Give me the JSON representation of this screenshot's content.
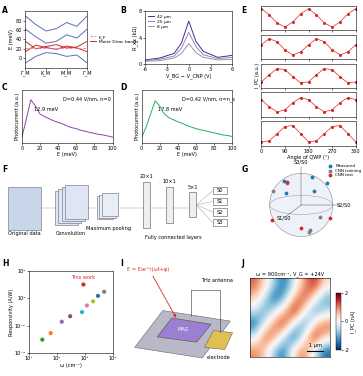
{
  "chart_data": [
    {
      "panel": "A",
      "type": "line",
      "ylabel": "E (meV)",
      "x": [
        0,
        0.5,
        1,
        1.5,
        2,
        2.5,
        3
      ],
      "xlim": [
        0,
        3
      ],
      "xticks": [
        {
          "value": 0,
          "label": "Γ_M"
        },
        {
          "value": 1,
          "label": "K_M"
        },
        {
          "value": 2,
          "label": "M_M"
        },
        {
          "value": 3,
          "label": "Γ_M"
        }
      ],
      "ylim": [
        -20,
        100
      ],
      "yticks": [
        0,
        20,
        40,
        60,
        80
      ],
      "series": [
        {
          "color": "#5b6fb5",
          "values": [
            90,
            72,
            58,
            63,
            76,
            68,
            90
          ]
        },
        {
          "color": "#5b6fb5",
          "values": [
            62,
            46,
            32,
            36,
            50,
            43,
            62
          ]
        },
        {
          "color": "#5b6fb5",
          "values": [
            -10,
            4,
            12,
            10,
            4,
            7,
            -10
          ]
        },
        {
          "name": "Moiré Dirac bands",
          "color": "#d62728",
          "values": [
            36,
            20,
            25,
            29,
            22,
            24,
            36
          ]
        },
        {
          "color": "#d62728",
          "values": [
            14,
            28,
            23,
            19,
            26,
            22,
            14
          ]
        }
      ],
      "ef": {
        "name": "E_F",
        "value": 22,
        "color": "#e377c2",
        "line_style": "dashed"
      },
      "legend": "right"
    },
    {
      "panel": "B",
      "type": "line",
      "xlabel": "V_BG − V_CNP (V)",
      "ylabel": "R_xx (kΩ)",
      "x": [
        -6,
        -4,
        -2,
        -1,
        0,
        1,
        2,
        4,
        6
      ],
      "xlim": [
        -6,
        6
      ],
      "xticks": [
        -6,
        -3,
        0,
        3,
        6
      ],
      "ylim": [
        0,
        8
      ],
      "yticks": [
        0,
        4,
        8
      ],
      "series": [
        {
          "name": "42 µm",
          "color": "#4b2c8a",
          "values": [
            0.6,
            0.9,
            1.6,
            3.2,
            6.5,
            3.4,
            1.9,
            1.0,
            1.3
          ]
        },
        {
          "name": "25 µm",
          "color": "#9b7fd1",
          "values": [
            0.5,
            0.7,
            1.2,
            2.4,
            4.8,
            2.6,
            1.4,
            0.8,
            1.0
          ]
        },
        {
          "name": "8 µm",
          "color": "#999999",
          "values": [
            0.4,
            0.5,
            0.9,
            1.6,
            3.1,
            1.7,
            1.0,
            0.6,
            0.7
          ]
        }
      ],
      "legend": "upper left"
    },
    {
      "panel": "C",
      "type": "line",
      "xlabel": "E (meV)",
      "ylabel": "Photocurrent (a.u.)",
      "x": [
        0,
        5,
        10,
        15,
        20,
        25,
        30,
        35,
        40,
        45,
        50,
        55,
        60,
        65,
        70,
        75,
        80,
        85,
        90,
        95,
        100
      ],
      "xlim": [
        0,
        100
      ],
      "xticks": [
        0,
        20,
        40,
        60,
        80,
        100
      ],
      "ylim": [
        0,
        1
      ],
      "tick_labels": "x",
      "series": [
        {
          "color": "#8e44ad",
          "values": [
            0.1,
            0.45,
            0.82,
            0.7,
            0.55,
            0.5,
            0.46,
            0.42,
            0.39,
            0.36,
            0.32,
            0.29,
            0.27,
            0.24,
            0.22,
            0.2,
            0.18,
            0.16,
            0.15,
            0.13,
            0.11
          ]
        }
      ],
      "annotations": [
        {
          "text": "12.9 meV",
          "x": 13,
          "y": 0.6
        },
        {
          "text": "D=0.44 V/nm, n=0",
          "x": 45,
          "y": 0.8
        }
      ]
    },
    {
      "panel": "D",
      "type": "line",
      "xlabel": "E (meV)",
      "ylabel": "Photocurrent (a.u.)",
      "x": [
        0,
        5,
        10,
        15,
        20,
        25,
        30,
        35,
        40,
        45,
        50,
        55,
        60,
        65,
        70,
        75,
        80,
        85,
        90,
        95,
        100
      ],
      "xlim": [
        0,
        100
      ],
      "xticks": [
        0,
        20,
        40,
        60,
        80,
        100
      ],
      "ylim": [
        0,
        1
      ],
      "tick_labels": "x",
      "series": [
        {
          "color": "#27ae60",
          "values": [
            0.1,
            0.3,
            0.55,
            0.8,
            0.7,
            0.55,
            0.48,
            0.44,
            0.4,
            0.37,
            0.33,
            0.3,
            0.27,
            0.25,
            0.23,
            0.21,
            0.19,
            0.17,
            0.15,
            0.14,
            0.12
          ]
        }
      ],
      "annotations": [
        {
          "text": "17.8 meV",
          "x": 18,
          "y": 0.6
        },
        {
          "text": "D=0.42 V/nm, n=n_s",
          "x": 45,
          "y": 0.8
        }
      ]
    },
    {
      "panel": "E",
      "type": "line",
      "marker": "o",
      "color": "#d62728",
      "ylim": [
        -1.2,
        1.2
      ],
      "x": [
        0,
        30,
        60,
        90,
        120,
        150,
        180,
        210,
        240,
        270,
        300,
        330,
        360
      ],
      "xlim": [
        0,
        360
      ],
      "xticks": [
        0,
        90,
        180,
        270,
        360
      ],
      "xlabel": "Angle of QWP (°)",
      "ylabel": "I_PC (a.u.)",
      "tick_labels": "x",
      "rows": [
        [
          0.9,
          0.3,
          -0.5,
          -0.9,
          -0.4,
          0.4,
          0.9,
          0.3,
          -0.5,
          -0.9,
          -0.4,
          0.4,
          0.9
        ],
        [
          0.2,
          0.8,
          0.5,
          -0.3,
          -0.8,
          -0.5,
          0.2,
          0.8,
          0.5,
          -0.3,
          -0.8,
          -0.5,
          0.2
        ],
        [
          -0.6,
          0.1,
          0.7,
          0.6,
          -0.1,
          -0.7,
          -0.6,
          0.1,
          0.7,
          0.6,
          -0.1,
          -0.7,
          -0.6
        ],
        [
          0.5,
          -0.2,
          -0.7,
          -0.5,
          0.2,
          0.7,
          0.5,
          -0.2,
          -0.7,
          -0.5,
          0.2,
          0.7,
          0.5
        ],
        [
          -0.8,
          -0.7,
          0.0,
          0.7,
          0.8,
          0.0,
          -0.8,
          -0.7,
          0.0,
          0.7,
          0.8,
          0.0,
          -0.8
        ]
      ]
    },
    {
      "panel": "G",
      "type": "scatter",
      "axis_labels": [
        "S1/S0",
        "S2/S0",
        "S3/S0"
      ],
      "legend": "upper left",
      "series": [
        {
          "name": "Measured",
          "color": "#1f77b4",
          "S1": [
            0.5,
            -0.3,
            0.1,
            0.7,
            -0.6
          ],
          "S2": [
            0.6,
            0.7,
            -0.5,
            -0.2,
            0.1
          ],
          "S3": [
            0.6,
            0.6,
            0.8,
            0.6,
            0.7
          ]
        },
        {
          "name": "CNN training",
          "color": "#7f7f7f",
          "S1": [
            0.2,
            -0.7,
            0.6,
            -0.1,
            0.4
          ],
          "S2": [
            -0.8,
            0.3,
            0.5,
            0.2,
            -0.3
          ],
          "S3": [
            0.5,
            -0.6,
            -0.6,
            -0.9,
            0.8
          ]
        },
        {
          "name": "CNN test",
          "color": "#d62728",
          "S1": [
            0.8,
            -0.4,
            0.0,
            0.3
          ],
          "S2": [
            0.3,
            -0.6,
            0.9,
            -0.8
          ],
          "S3": [
            -0.5,
            0.6,
            -0.4,
            -0.4
          ]
        }
      ]
    },
    {
      "panel": "H",
      "type": "scatter",
      "log": true,
      "xlabel": "ω (cm⁻¹)",
      "ylabel": "Responsivity (A/W)",
      "xlim": [
        10,
        10000
      ],
      "xticks": [
        {
          "value": 10,
          "label": "10¹"
        },
        {
          "value": 100,
          "label": "10²"
        },
        {
          "value": 1000,
          "label": "10³"
        },
        {
          "value": 10000,
          "label": "10⁴"
        }
      ],
      "ylim": [
        0.0001,
        100
      ],
      "yticks": [
        {
          "value": 0.0001,
          "label": "10⁻⁴"
        },
        {
          "value": 0.01,
          "label": "10⁻²"
        },
        {
          "value": 1,
          "label": "10⁰"
        },
        {
          "value": 100,
          "label": "10²"
        }
      ],
      "x": [
        30,
        60,
        150,
        300,
        800,
        1200,
        2000,
        3000,
        5000,
        900
      ],
      "values": [
        0.001,
        0.003,
        0.02,
        0.05,
        0.1,
        0.3,
        0.6,
        1.5,
        3,
        10
      ],
      "colors": [
        "#2ca02c",
        "#ff7f0e",
        "#9467bd",
        "#8c564b",
        "#17becf",
        "#e377c2",
        "#bcbd22",
        "#1f77b4",
        "#7f7f7f",
        "#d62728"
      ],
      "annotations": [
        {
          "text": "This work",
          "x": 900,
          "y": 25
        }
      ]
    },
    {
      "panel": "J",
      "type": "heatmap",
      "title": "ω = 900cm⁻¹, V_G = +24V",
      "colorbar_label": "I_PC (nA)",
      "colorbar_range": [
        -2,
        2
      ],
      "colorbar_ticks": [
        -2,
        0,
        2
      ],
      "scale_bar": "1 µm",
      "cells": [
        [
          1.2,
          0.4,
          -0.8,
          -1.5,
          -0.2,
          0.9,
          1.6,
          0.3
        ],
        [
          0.6,
          -0.5,
          -1.7,
          -0.9,
          0.8,
          1.4,
          0.2,
          -1.1
        ],
        [
          -0.4,
          -1.2,
          -0.3,
          0.7,
          1.8,
          0.1,
          -1.3,
          -0.6
        ],
        [
          -1.6,
          -0.2,
          1.1,
          1.5,
          -0.4,
          -1.4,
          0.5,
          1.2
        ],
        [
          -0.3,
          1.3,
          0.9,
          -0.7,
          -1.8,
          0.3,
          1.7,
          0.4
        ],
        [
          1.0,
          0.5,
          -1.0,
          -1.4,
          0.6,
          1.1,
          -0.5,
          -1.6
        ]
      ]
    }
  ],
  "diagrams": [
    {
      "panel": "F",
      "stages": [
        "Original data",
        "Convolution",
        "Maximum pooling",
        "Fully connected layers"
      ],
      "layers": [
        "20×1",
        "10×1",
        "5×1"
      ],
      "outputs": [
        "S0",
        "S1",
        "S2",
        "S3"
      ]
    },
    {
      "panel": "I",
      "labels": [
        "E = E₀e^i(ωt+φ)",
        "MAG",
        "electrode",
        "THz antenna"
      ]
    }
  ]
}
